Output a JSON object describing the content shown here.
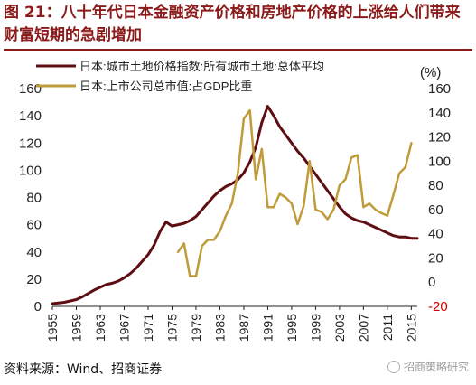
{
  "header": {
    "title": "图 21：八十年代日本金融资产价格和房地产价格的上涨给人们带来财富短期的急剧增加"
  },
  "footer": {
    "source": "资料来源：Wind、招商证券",
    "watermark": "招商策略研究"
  },
  "colors": {
    "title": "#8b1a1a",
    "land_series": "#5e0e12",
    "market_series": "#bf9b3a"
  },
  "chart_data": {
    "type": "line",
    "left_axis": {
      "ylim": [
        0,
        160
      ],
      "ticks": [
        0,
        20,
        40,
        60,
        80,
        100,
        120,
        140,
        160
      ]
    },
    "right_axis": {
      "unit_label": "(%)",
      "ylim": [
        -20,
        160
      ],
      "ticks": [
        -20,
        0,
        20,
        40,
        60,
        80,
        100,
        120,
        140,
        160
      ]
    },
    "x_ticks": [
      1955,
      1959,
      1963,
      1967,
      1971,
      1975,
      1979,
      1983,
      1987,
      1991,
      1995,
      1999,
      2003,
      2007,
      2011,
      2015
    ],
    "xlim": [
      1955,
      2016
    ],
    "legend_position": "top-left",
    "series": [
      {
        "name": "日本:城市土地价格指数:所有城市土地:总体平均",
        "axis": "left",
        "color": "#5e0e12",
        "x": [
          1955,
          1956,
          1957,
          1958,
          1959,
          1960,
          1961,
          1962,
          1963,
          1964,
          1965,
          1966,
          1967,
          1968,
          1969,
          1970,
          1971,
          1972,
          1973,
          1974,
          1975,
          1976,
          1977,
          1978,
          1979,
          1980,
          1981,
          1982,
          1983,
          1984,
          1985,
          1986,
          1987,
          1988,
          1989,
          1990,
          1991,
          1992,
          1993,
          1994,
          1995,
          1996,
          1997,
          1998,
          1999,
          2000,
          2001,
          2002,
          2003,
          2004,
          2005,
          2006,
          2007,
          2008,
          2009,
          2010,
          2011,
          2012,
          2013,
          2014,
          2015,
          2016
        ],
        "values": [
          2,
          2.5,
          3,
          4,
          5,
          7,
          9.5,
          12,
          14,
          16,
          17,
          18.5,
          21,
          24,
          28,
          33,
          38,
          45,
          55,
          62,
          59,
          60,
          61,
          63,
          66,
          71,
          76,
          81,
          85,
          88,
          90,
          93,
          98,
          106,
          117,
          135,
          147,
          140,
          132,
          126,
          120,
          114,
          109,
          103,
          97,
          91,
          85,
          79,
          73,
          68,
          65,
          63,
          62,
          60,
          58,
          56,
          54,
          52,
          51,
          51,
          50,
          50
        ]
      },
      {
        "name": "日本:上市公司总市值:占GDP比重",
        "axis": "right",
        "color": "#bf9b3a",
        "x": [
          1976,
          1977,
          1978,
          1979,
          1980,
          1981,
          1982,
          1983,
          1984,
          1985,
          1986,
          1987,
          1988,
          1989,
          1990,
          1991,
          1992,
          1993,
          1994,
          1995,
          1996,
          1997,
          1998,
          1999,
          2000,
          2001,
          2002,
          2003,
          2004,
          2005,
          2006,
          2007,
          2008,
          2009,
          2010,
          2011,
          2012,
          2013,
          2014,
          2015
        ],
        "values": [
          25,
          32,
          5,
          5,
          30,
          35,
          35,
          42,
          55,
          65,
          90,
          135,
          142,
          85,
          110,
          62,
          62,
          73,
          70,
          65,
          48,
          63,
          100,
          60,
          58,
          52,
          60,
          80,
          85,
          103,
          105,
          62,
          65,
          60,
          57,
          55,
          72,
          90,
          95,
          115
        ]
      }
    ]
  }
}
